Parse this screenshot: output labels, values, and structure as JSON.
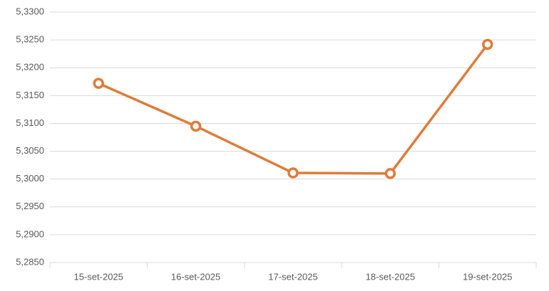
{
  "chart_data": {
    "type": "line",
    "categories": [
      "15-set-2025",
      "16-set-2025",
      "17-set-2025",
      "18-set-2025",
      "19-set-2025"
    ],
    "series": [
      {
        "color": "#e07b39",
        "values": [
          5.3172,
          5.3095,
          5.3011,
          5.301,
          5.3242
        ]
      }
    ],
    "ylim": [
      5.285,
      5.33
    ],
    "yticks": [
      {
        "value": 5.285,
        "label": "5,2850"
      },
      {
        "value": 5.29,
        "label": "5,2900"
      },
      {
        "value": 5.295,
        "label": "5,2950"
      },
      {
        "value": 5.3,
        "label": "5,3000"
      },
      {
        "value": 5.305,
        "label": "5,3050"
      },
      {
        "value": 5.31,
        "label": "5,3100"
      },
      {
        "value": 5.315,
        "label": "5,3150"
      },
      {
        "value": 5.32,
        "label": "5,3200"
      },
      {
        "value": 5.325,
        "label": "5,3250"
      },
      {
        "value": 5.33,
        "label": "5,3300"
      }
    ],
    "grid": true
  }
}
